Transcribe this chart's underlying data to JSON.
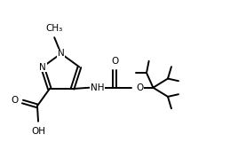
{
  "bg_color": "#ffffff",
  "line_color": "#000000",
  "line_width": 1.4,
  "font_size": 7.5,
  "fig_width": 2.68,
  "fig_height": 1.78,
  "xlim": [
    0,
    10
  ],
  "ylim": [
    0,
    6.6
  ]
}
